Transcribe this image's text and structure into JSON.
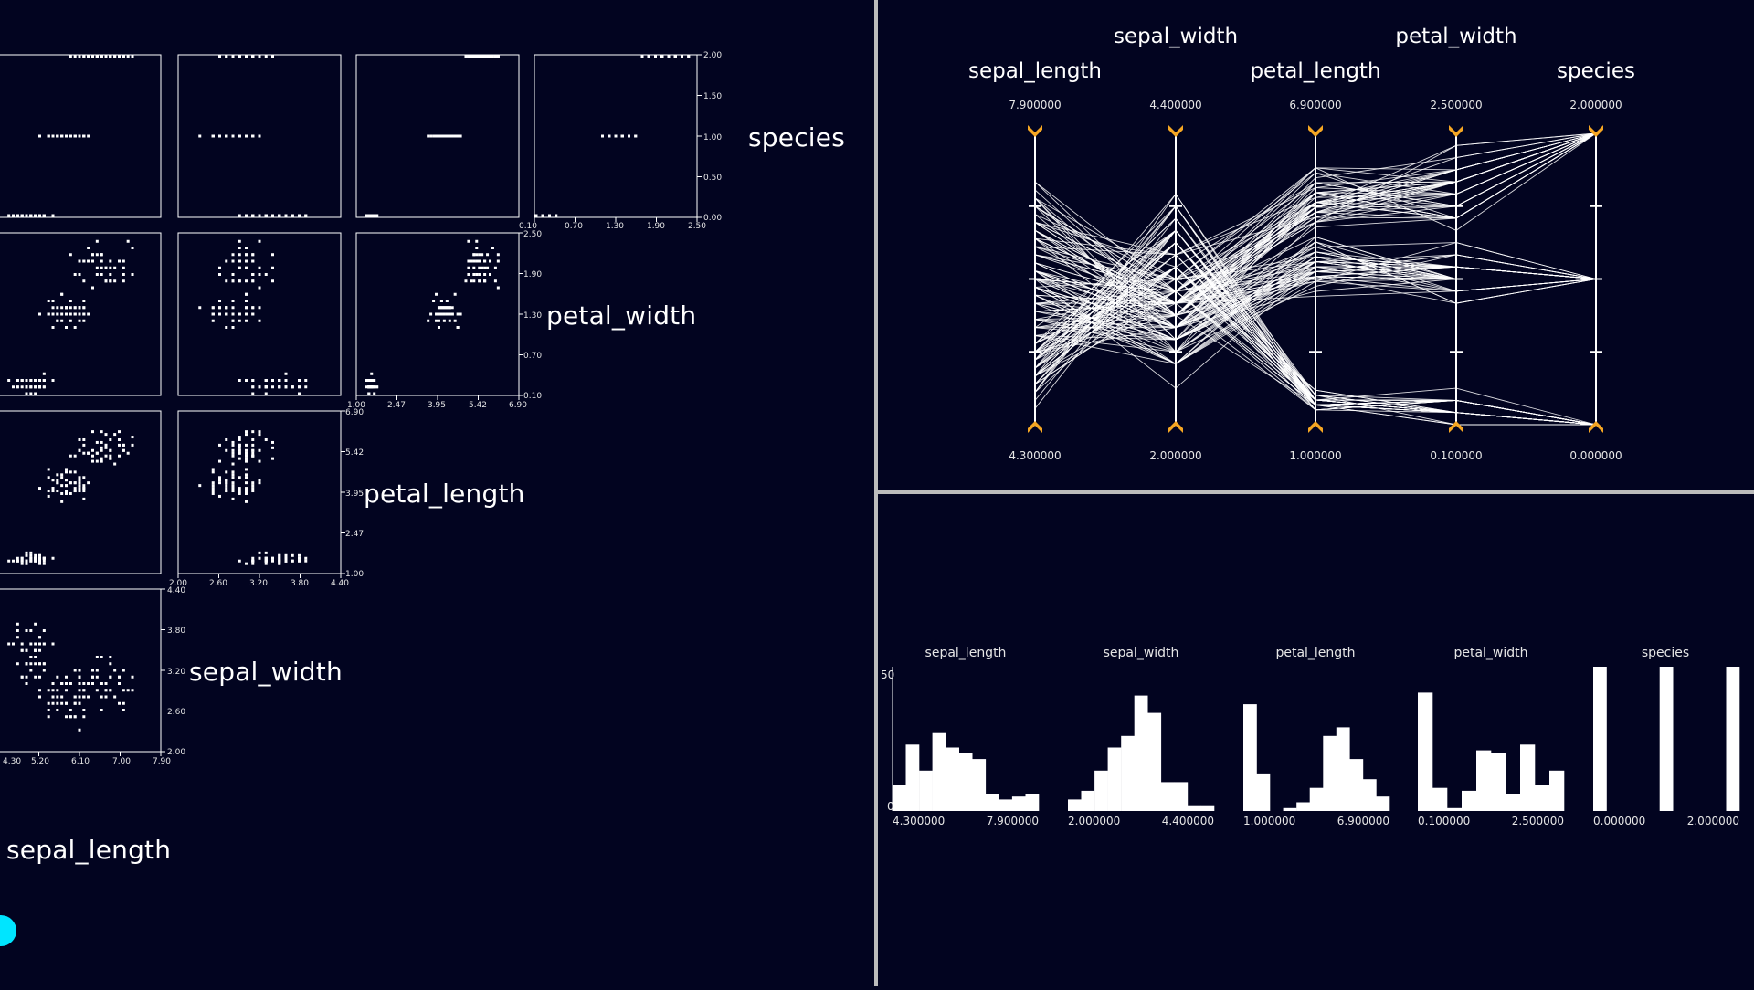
{
  "app": {
    "colors": {
      "background": "#020420",
      "marks": "#ffffff",
      "divider": "#bcbcbc",
      "handle": "#f5a623",
      "orientation": "#00e5ff"
    }
  },
  "scatter_matrix": {
    "diagonal_labels": [
      "species",
      "petal_width",
      "petal_length",
      "sepal_width",
      "sepal_length"
    ],
    "axis_ticks": {
      "species_row": [
        "0.10",
        "0.70",
        "1.30",
        "1.90",
        "2.50"
      ],
      "species_right": [
        "2.00",
        "1.50",
        "1.00",
        "0.50",
        "0.00"
      ],
      "petal_width_row": [
        "1.00",
        "2.47",
        "3.95",
        "5.42",
        "6.90"
      ],
      "petal_width_right": [
        "2.50",
        "1.90",
        "1.30",
        "0.70",
        "0.10"
      ],
      "petal_length_row": [
        "2.00",
        "2.60",
        "3.20",
        "3.80",
        "4.40"
      ],
      "petal_length_right": [
        "6.90",
        "5.42",
        "3.95",
        "2.47",
        "1.00"
      ],
      "sepal_width_row": [
        "4.30",
        "5.20",
        "6.10",
        "7.00",
        "7.90"
      ],
      "sepal_width_right": [
        "4.40",
        "3.80",
        "3.20",
        "2.60",
        "2.00"
      ]
    }
  },
  "parallel_coordinates": {
    "axes": [
      {
        "name": "sepal_length",
        "max": "7.900000",
        "min": "4.300000"
      },
      {
        "name": "sepal_width",
        "max": "4.400000",
        "min": "2.000000"
      },
      {
        "name": "petal_length",
        "max": "6.900000",
        "min": "1.000000"
      },
      {
        "name": "petal_width",
        "max": "2.500000",
        "min": "0.100000"
      },
      {
        "name": "species",
        "max": "2.000000",
        "min": "0.000000"
      }
    ]
  },
  "histograms": [
    {
      "title": "sepal_length",
      "min": "4.300000",
      "max": "7.900000",
      "y_max": "50",
      "y_min": "0"
    },
    {
      "title": "sepal_width",
      "min": "2.000000",
      "max": "4.400000"
    },
    {
      "title": "petal_length",
      "min": "1.000000",
      "max": "6.900000"
    },
    {
      "title": "petal_width",
      "min": "0.100000",
      "max": "2.500000"
    },
    {
      "title": "species",
      "min": "0.000000",
      "max": "2.000000"
    }
  ],
  "chart_data": [
    {
      "type": "scatter",
      "kind": "scatter-plot-matrix",
      "variables": [
        "sepal_length",
        "sepal_width",
        "petal_length",
        "petal_width",
        "species"
      ]
    },
    {
      "type": "line",
      "kind": "parallel-coordinates",
      "axes": [
        "sepal_length",
        "sepal_width",
        "petal_length",
        "petal_width",
        "species"
      ],
      "ranges": [
        [
          4.3,
          7.9
        ],
        [
          2.0,
          4.4
        ],
        [
          1.0,
          6.9
        ],
        [
          0.1,
          2.5
        ],
        [
          0.0,
          2.0
        ]
      ]
    },
    {
      "type": "bar",
      "kind": "histograms",
      "ylim": [
        0,
        50
      ],
      "series": [
        {
          "name": "sepal_length",
          "range": [
            4.3,
            7.9
          ],
          "values": [
            9,
            23,
            14,
            27,
            22,
            20,
            18,
            6,
            4,
            5,
            6
          ]
        },
        {
          "name": "sepal_width",
          "range": [
            2.0,
            4.4
          ],
          "values": [
            4,
            7,
            14,
            22,
            26,
            40,
            34,
            10,
            10,
            2,
            2
          ]
        },
        {
          "name": "petal_length",
          "range": [
            1.0,
            6.9
          ],
          "values": [
            37,
            13,
            0,
            1,
            3,
            8,
            26,
            29,
            18,
            11,
            5
          ]
        },
        {
          "name": "petal_width",
          "range": [
            0.1,
            2.5
          ],
          "values": [
            41,
            8,
            1,
            7,
            21,
            20,
            6,
            23,
            9,
            14
          ]
        },
        {
          "name": "species",
          "range": [
            0.0,
            2.0
          ],
          "values": [
            50,
            0,
            0,
            0,
            0,
            50,
            0,
            0,
            0,
            0,
            50
          ]
        }
      ]
    }
  ]
}
